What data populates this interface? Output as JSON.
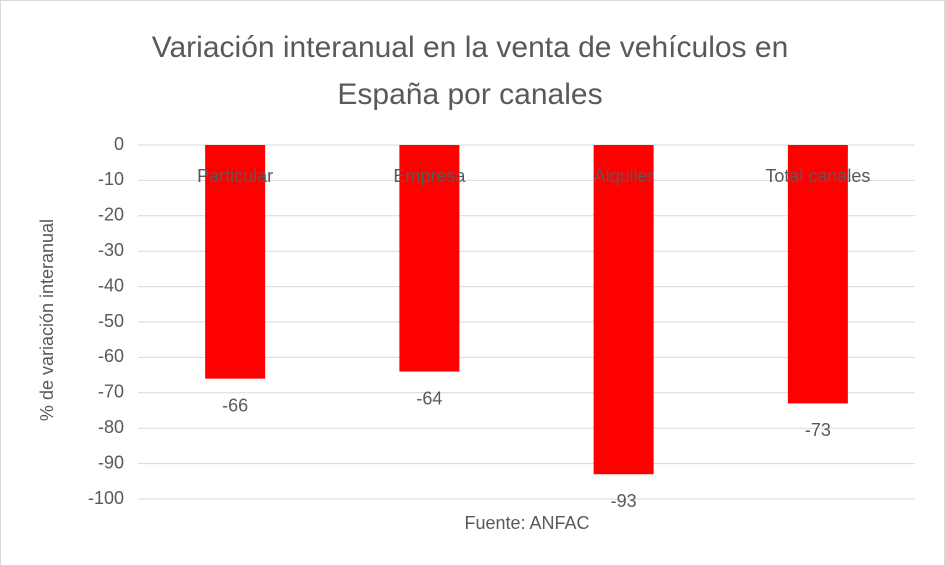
{
  "chart_data": {
    "type": "bar",
    "title": "Variación interanual en la venta de vehículos en España por canales",
    "y_label": "% de variación interanual",
    "annotation": "Fuente: ANFAC",
    "categories": [
      "Particular",
      "Empresa",
      "Alquiler",
      "Total canales"
    ],
    "values": [
      -66,
      -64,
      -93,
      -73
    ],
    "color": "#ff0000",
    "ylim": [
      -100,
      0
    ],
    "yticks": [
      0,
      -10,
      -20,
      -30,
      -40,
      -50,
      -60,
      -70,
      -80,
      -90,
      -100
    ],
    "grid": true
  }
}
